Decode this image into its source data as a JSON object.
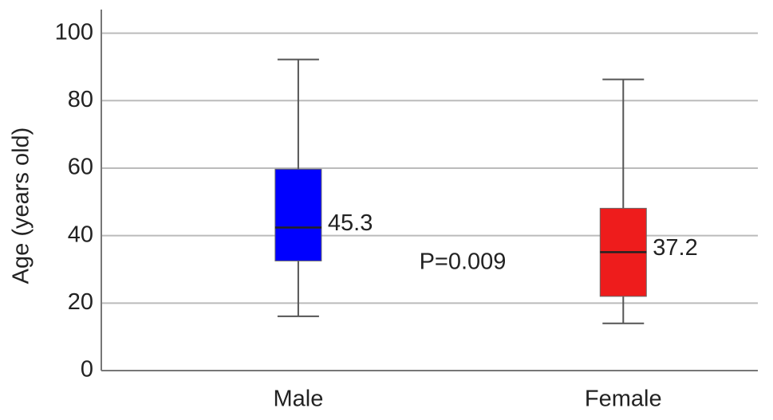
{
  "chart_data": {
    "type": "box",
    "y_label": "Age (years old)",
    "categories": [
      "Male",
      "Female"
    ],
    "colors": [
      "#0000ff",
      "#ee1c1c"
    ],
    "min": [
      16.1,
      14.0
    ],
    "q1": [
      32.5,
      22.0
    ],
    "median": [
      42.4,
      35.1
    ],
    "q3": [
      59.7,
      48.1
    ],
    "max": [
      92.2,
      86.3
    ],
    "mean_labels": [
      45.3,
      37.2
    ],
    "annotation": "P=0.009",
    "ylim": [
      0,
      107
    ],
    "yticks": [
      0,
      20,
      40,
      60,
      80,
      100
    ],
    "grid": true
  }
}
